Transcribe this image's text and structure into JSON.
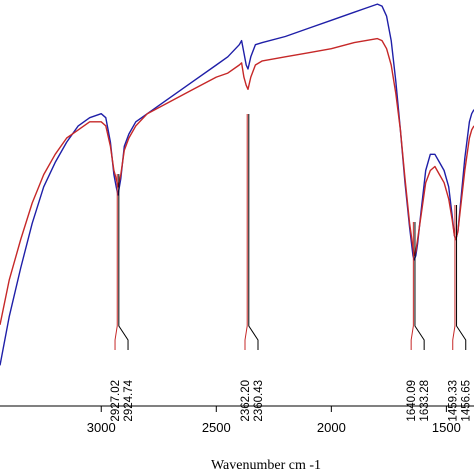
{
  "chart_data": {
    "type": "line",
    "title": "",
    "xlabel": "Wavenumber cm -1",
    "ylabel": "",
    "xlim": [
      3440,
      1380
    ],
    "ylim": [
      0,
      100
    ],
    "x_reversed": true,
    "x_ticks": [
      3000,
      2500,
      2000,
      1500
    ],
    "x_tick_labels": [
      "3000",
      "2500",
      "2000",
      "1500"
    ],
    "grid": false,
    "colors": {
      "blue": "#1f1fa8",
      "red": "#c62828",
      "axis": "#000000"
    },
    "series": [
      {
        "color": "#1f1fa8",
        "x": [
          3440,
          3400,
          3350,
          3300,
          3250,
          3200,
          3150,
          3100,
          3050,
          3000,
          2980,
          2960,
          2945,
          2935,
          2927,
          2915,
          2900,
          2880,
          2850,
          2800,
          2700,
          2600,
          2500,
          2450,
          2400,
          2390,
          2380,
          2370,
          2362,
          2350,
          2330,
          2300,
          2200,
          2100,
          2000,
          1900,
          1850,
          1800,
          1780,
          1760,
          1740,
          1720,
          1700,
          1680,
          1660,
          1645,
          1640,
          1633,
          1625,
          1610,
          1590,
          1570,
          1550,
          1530,
          1510,
          1490,
          1475,
          1465,
          1459,
          1450,
          1440,
          1420,
          1400,
          1390,
          1380
        ],
        "y": [
          10,
          22,
          34,
          45,
          54,
          60,
          65,
          69,
          71,
          72,
          71,
          65,
          57,
          54,
          52,
          56,
          64,
          67,
          70,
          72,
          76,
          80,
          84,
          86,
          89,
          90,
          87,
          84,
          83,
          86,
          89,
          89.5,
          91,
          93,
          95,
          97,
          98,
          99,
          98.5,
          96,
          90,
          80,
          68,
          55,
          44,
          37,
          36,
          37,
          40,
          48,
          58,
          62,
          62,
          60,
          58,
          54,
          47,
          42,
          41,
          43,
          49,
          61,
          70,
          72,
          73
        ]
      },
      {
        "color": "#c62828",
        "x": [
          3440,
          3400,
          3350,
          3300,
          3250,
          3200,
          3150,
          3100,
          3050,
          3000,
          2980,
          2960,
          2945,
          2935,
          2927,
          2915,
          2900,
          2880,
          2850,
          2800,
          2700,
          2600,
          2500,
          2450,
          2400,
          2390,
          2380,
          2370,
          2362,
          2350,
          2330,
          2300,
          2200,
          2100,
          2000,
          1900,
          1850,
          1800,
          1780,
          1760,
          1740,
          1720,
          1700,
          1680,
          1660,
          1645,
          1640,
          1633,
          1625,
          1610,
          1590,
          1570,
          1550,
          1530,
          1510,
          1490,
          1475,
          1465,
          1459,
          1450,
          1440,
          1420,
          1400,
          1390,
          1380
        ],
        "y": [
          20,
          31,
          41,
          50,
          57,
          62,
          66,
          68,
          70,
          70,
          69,
          64,
          58,
          56,
          54,
          57,
          63,
          66,
          69,
          72,
          75,
          78,
          81,
          82,
          84,
          84.5,
          81,
          79,
          78,
          81,
          84,
          85,
          86,
          87,
          88,
          89.5,
          90,
          90.5,
          90,
          88,
          84,
          77,
          68,
          56,
          45,
          39,
          37,
          38,
          41,
          47,
          55,
          58,
          59,
          57,
          55,
          51,
          46,
          42,
          41,
          43,
          48,
          58,
          66,
          68,
          69
        ]
      }
    ],
    "annotations": [
      {
        "x": 2927.02,
        "label": "2927.02",
        "series": "red"
      },
      {
        "x": 2924.74,
        "label": "2924.74",
        "series": "blue"
      },
      {
        "x": 2362.2,
        "label": "2362.20",
        "series": "red"
      },
      {
        "x": 2360.43,
        "label": "2360.43",
        "series": "blue"
      },
      {
        "x": 1640.09,
        "label": "1640.09",
        "series": "red"
      },
      {
        "x": 1633.28,
        "label": "1633.28",
        "series": "blue"
      },
      {
        "x": 1459.33,
        "label": "1459.33",
        "series": "red"
      },
      {
        "x": 1456.65,
        "label": "1456.65",
        "series": "blue"
      }
    ]
  }
}
